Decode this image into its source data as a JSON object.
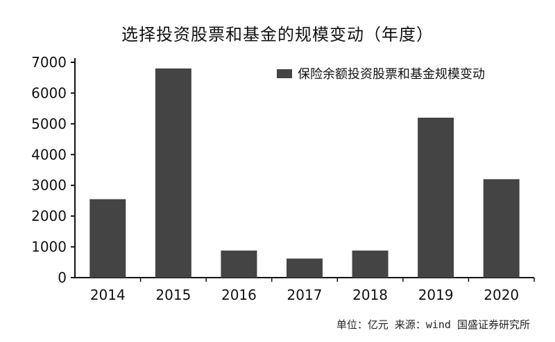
{
  "chart_data": {
    "type": "bar",
    "title": "选择投资股票和基金的规模变动（年度）",
    "categories": [
      "2014",
      "2015",
      "2016",
      "2017",
      "2018",
      "2019",
      "2020"
    ],
    "series": [
      {
        "name": "保险余额投资股票和基金规模变动",
        "values": [
          2550,
          6800,
          880,
          620,
          880,
          5200,
          3200
        ]
      }
    ],
    "ylim": [
      0,
      7000
    ],
    "yticks": [
      0,
      1000,
      2000,
      3000,
      4000,
      5000,
      6000,
      7000
    ],
    "grid": false,
    "legend_position": "top-right",
    "bar_color": "#444444",
    "footer": "单位：亿元   来源：wind 国盛证券研究所"
  }
}
